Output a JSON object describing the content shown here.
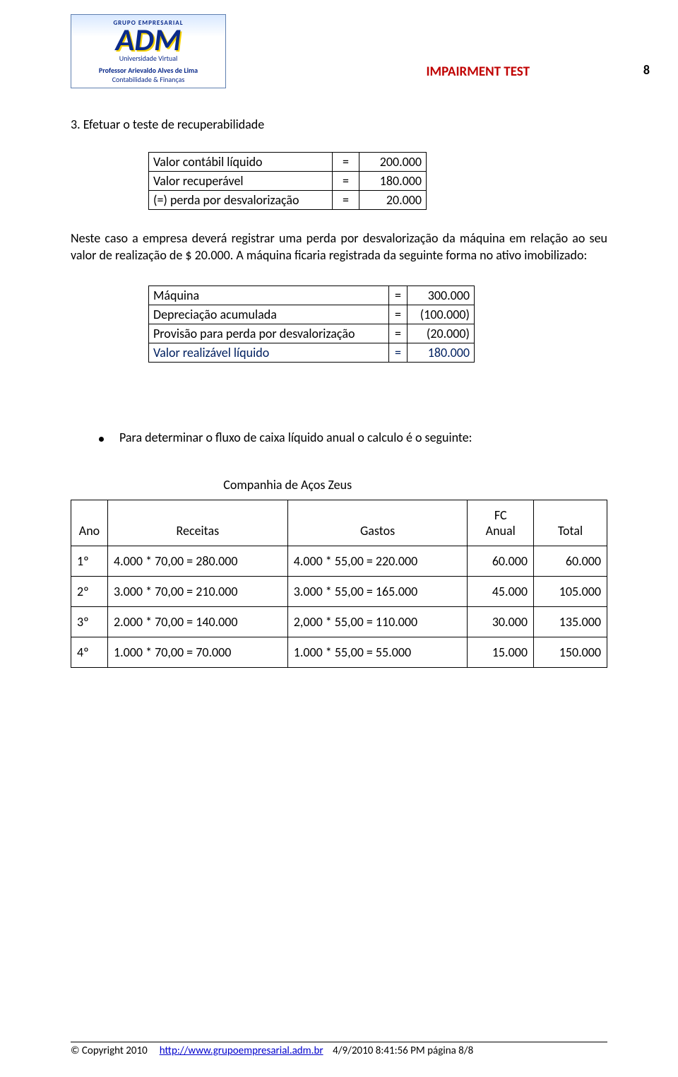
{
  "logo": {
    "arc": "GRUPO EMPRESARIAL",
    "main": "ADM",
    "uv": "Universidade Virtual",
    "prof": "Professor Arievaldo Alves de Lima",
    "tag": "Contabilidade & Finanças"
  },
  "doc_title": "IMPAIRMENT TEST",
  "page_num_top": "8",
  "section_title": "3. Efetuar o teste de recuperabilidade",
  "table1": {
    "rows": [
      {
        "label": "Valor contábil líquido",
        "eq": "=",
        "val": "200.000"
      },
      {
        "label": "Valor recuperável",
        "eq": "=",
        "val": "180.000"
      },
      {
        "label": "(=) perda por desvalorização",
        "eq": "=",
        "val": "20.000"
      }
    ]
  },
  "paragraph": "Neste caso a empresa deverá registrar uma perda por desvalorização da máquina em relação ao seu valor de realização de $ 20.000. A máquina ficaria registrada da seguinte forma no ativo imobilizado:",
  "table2": {
    "rows": [
      {
        "label": "Máquina",
        "eq": "=",
        "val": "300.000",
        "blue": false
      },
      {
        "label": "Depreciação acumulada",
        "eq": "=",
        "val": "(100.000)",
        "blue": false
      },
      {
        "label": "Provisão para perda por desvalorização",
        "eq": "=",
        "val": "(20.000)",
        "blue": false
      },
      {
        "label": "Valor realizável líquido",
        "eq": "=",
        "val": "180.000",
        "blue": true
      }
    ]
  },
  "bullet_text": "Para determinar o fluxo de caixa líquido anual o calculo é o seguinte:",
  "big_table": {
    "title": "Companhia de Aços Zeus",
    "headers": {
      "ano": "Ano",
      "rec": "Receitas",
      "gas": "Gastos",
      "fc1": "FC",
      "fc2": "Anual",
      "tot": "Total"
    },
    "rows": [
      {
        "ano": "1º",
        "rec": "4.000 * 70,00 = 280.000",
        "gas": "4.000 * 55,00 =  220.000",
        "fc": "60.000",
        "tot": "60.000"
      },
      {
        "ano": "2º",
        "rec": "3.000 * 70,00 = 210.000",
        "gas": "3.000 * 55,00 =  165.000",
        "fc": "45.000",
        "tot": "105.000"
      },
      {
        "ano": "3º",
        "rec": "2.000 * 70,00 = 140.000",
        "gas": "2,000 * 55,00 =  110.000",
        "fc": "30.000",
        "tot": "135.000"
      },
      {
        "ano": "4º",
        "rec": "1.000 * 70,00 =   70.000",
        "gas": "1.000 * 55,00 =    55.000",
        "fc": "15.000",
        "tot": "150.000"
      }
    ]
  },
  "footer": {
    "copyright": "© Copyright 2010",
    "url": "http://www.grupoempresarial.adm.br",
    "stamp": "4/9/2010  8:41:56 PM página  8/8"
  },
  "colors": {
    "title": "#c00000",
    "link": "#0000cc",
    "highlight": "#002060",
    "text": "#000000",
    "bg": "#ffffff"
  }
}
